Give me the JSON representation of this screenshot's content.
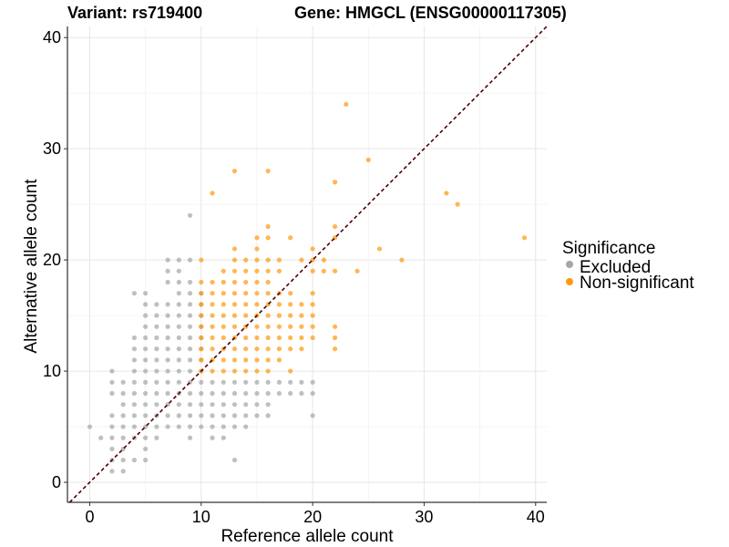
{
  "header": {
    "variant_label": "Variant: rs719400",
    "gene_label": "Gene: HMGCL (ENSG00000117305)"
  },
  "chart_data": {
    "type": "scatter",
    "xlabel": "Reference allele count",
    "ylabel": "Alternative allele count",
    "xlim": [
      -2,
      41
    ],
    "ylim": [
      -1.8,
      41
    ],
    "x_ticks": [
      0,
      10,
      20,
      30,
      40
    ],
    "y_ticks": [
      0,
      10,
      20,
      30,
      40
    ],
    "grid": true,
    "diagonal_line": {
      "slope": 1,
      "intercept": 0,
      "style": "dashed",
      "color": "#4a0000"
    },
    "legend": {
      "title": "Significance",
      "placement": "right",
      "entries": [
        {
          "name": "Excluded",
          "color": "#a6a6a6"
        },
        {
          "name": "Non-significant",
          "color": "#ff9a10"
        }
      ]
    },
    "series": [
      {
        "name": "Excluded",
        "color": "#a6a6a6",
        "points": [
          [
            0,
            5
          ],
          [
            1,
            4
          ],
          [
            2,
            1
          ],
          [
            2,
            2
          ],
          [
            2,
            3
          ],
          [
            2,
            4
          ],
          [
            2,
            5
          ],
          [
            2,
            6
          ],
          [
            2,
            8
          ],
          [
            2,
            9
          ],
          [
            2,
            10
          ],
          [
            3,
            1
          ],
          [
            3,
            2
          ],
          [
            3,
            3
          ],
          [
            3,
            4
          ],
          [
            3,
            5
          ],
          [
            3,
            6
          ],
          [
            3,
            7
          ],
          [
            3,
            8
          ],
          [
            3,
            9
          ],
          [
            4,
            2
          ],
          [
            4,
            4
          ],
          [
            4,
            5
          ],
          [
            4,
            6
          ],
          [
            4,
            7
          ],
          [
            4,
            8
          ],
          [
            4,
            9
          ],
          [
            4,
            10
          ],
          [
            4,
            11
          ],
          [
            4,
            12
          ],
          [
            4,
            13
          ],
          [
            4,
            17
          ],
          [
            5,
            2
          ],
          [
            5,
            3
          ],
          [
            5,
            4
          ],
          [
            5,
            5
          ],
          [
            5,
            6
          ],
          [
            5,
            7
          ],
          [
            5,
            8
          ],
          [
            5,
            9
          ],
          [
            5,
            10
          ],
          [
            5,
            11
          ],
          [
            5,
            12
          ],
          [
            5,
            13
          ],
          [
            5,
            14
          ],
          [
            5,
            15
          ],
          [
            5,
            16
          ],
          [
            5,
            17
          ],
          [
            6,
            4
          ],
          [
            6,
            5
          ],
          [
            6,
            6
          ],
          [
            6,
            7
          ],
          [
            6,
            8
          ],
          [
            6,
            9
          ],
          [
            6,
            10
          ],
          [
            6,
            11
          ],
          [
            6,
            12
          ],
          [
            6,
            13
          ],
          [
            6,
            14
          ],
          [
            6,
            15
          ],
          [
            6,
            16
          ],
          [
            7,
            5
          ],
          [
            7,
            6
          ],
          [
            7,
            7
          ],
          [
            7,
            8
          ],
          [
            7,
            9
          ],
          [
            7,
            10
          ],
          [
            7,
            11
          ],
          [
            7,
            12
          ],
          [
            7,
            13
          ],
          [
            7,
            14
          ],
          [
            7,
            15
          ],
          [
            7,
            16
          ],
          [
            7,
            18
          ],
          [
            7,
            19
          ],
          [
            7,
            20
          ],
          [
            8,
            5
          ],
          [
            8,
            6
          ],
          [
            8,
            7
          ],
          [
            8,
            8
          ],
          [
            8,
            9
          ],
          [
            8,
            10
          ],
          [
            8,
            11
          ],
          [
            8,
            12
          ],
          [
            8,
            13
          ],
          [
            8,
            14
          ],
          [
            8,
            15
          ],
          [
            8,
            16
          ],
          [
            8,
            17
          ],
          [
            8,
            18
          ],
          [
            8,
            19
          ],
          [
            8,
            20
          ],
          [
            9,
            4
          ],
          [
            9,
            5
          ],
          [
            9,
            6
          ],
          [
            9,
            7
          ],
          [
            9,
            8
          ],
          [
            9,
            9
          ],
          [
            9,
            10
          ],
          [
            9,
            11
          ],
          [
            9,
            12
          ],
          [
            9,
            13
          ],
          [
            9,
            14
          ],
          [
            9,
            15
          ],
          [
            9,
            16
          ],
          [
            9,
            17
          ],
          [
            9,
            18
          ],
          [
            9,
            20
          ],
          [
            9,
            24
          ],
          [
            10,
            5
          ],
          [
            10,
            6
          ],
          [
            10,
            7
          ],
          [
            10,
            8
          ],
          [
            10,
            9
          ],
          [
            10,
            10
          ],
          [
            10,
            11
          ],
          [
            10,
            12
          ],
          [
            10,
            13
          ],
          [
            10,
            14
          ],
          [
            10,
            15
          ],
          [
            10,
            16
          ],
          [
            10,
            17
          ],
          [
            11,
            4
          ],
          [
            11,
            5
          ],
          [
            11,
            6
          ],
          [
            11,
            7
          ],
          [
            11,
            8
          ],
          [
            11,
            9
          ],
          [
            12,
            4
          ],
          [
            12,
            5
          ],
          [
            12,
            6
          ],
          [
            12,
            7
          ],
          [
            12,
            8
          ],
          [
            12,
            9
          ],
          [
            13,
            2
          ],
          [
            13,
            5
          ],
          [
            13,
            6
          ],
          [
            13,
            7
          ],
          [
            13,
            8
          ],
          [
            13,
            9
          ],
          [
            14,
            5
          ],
          [
            14,
            6
          ],
          [
            14,
            7
          ],
          [
            14,
            8
          ],
          [
            14,
            9
          ],
          [
            15,
            6
          ],
          [
            15,
            7
          ],
          [
            15,
            8
          ],
          [
            15,
            9
          ],
          [
            16,
            6
          ],
          [
            16,
            7
          ],
          [
            16,
            8
          ],
          [
            16,
            9
          ],
          [
            17,
            8
          ],
          [
            17,
            9
          ],
          [
            18,
            8
          ],
          [
            18,
            9
          ],
          [
            19,
            8
          ],
          [
            19,
            9
          ],
          [
            20,
            6
          ],
          [
            20,
            8
          ],
          [
            20,
            9
          ]
        ]
      },
      {
        "name": "Non-significant",
        "color": "#ff9a10",
        "points": [
          [
            10,
            10
          ],
          [
            10,
            11
          ],
          [
            10,
            12
          ],
          [
            10,
            13
          ],
          [
            10,
            14
          ],
          [
            10,
            15
          ],
          [
            10,
            16
          ],
          [
            10,
            17
          ],
          [
            10,
            18
          ],
          [
            10,
            20
          ],
          [
            11,
            10
          ],
          [
            11,
            11
          ],
          [
            11,
            12
          ],
          [
            11,
            13
          ],
          [
            11,
            14
          ],
          [
            11,
            15
          ],
          [
            11,
            16
          ],
          [
            11,
            17
          ],
          [
            11,
            18
          ],
          [
            11,
            26
          ],
          [
            12,
            10
          ],
          [
            12,
            11
          ],
          [
            12,
            12
          ],
          [
            12,
            13
          ],
          [
            12,
            14
          ],
          [
            12,
            15
          ],
          [
            12,
            16
          ],
          [
            12,
            17
          ],
          [
            12,
            18
          ],
          [
            12,
            19
          ],
          [
            13,
            10
          ],
          [
            13,
            11
          ],
          [
            13,
            12
          ],
          [
            13,
            13
          ],
          [
            13,
            14
          ],
          [
            13,
            15
          ],
          [
            13,
            16
          ],
          [
            13,
            17
          ],
          [
            13,
            18
          ],
          [
            13,
            19
          ],
          [
            13,
            20
          ],
          [
            13,
            21
          ],
          [
            13,
            28
          ],
          [
            14,
            10
          ],
          [
            14,
            11
          ],
          [
            14,
            12
          ],
          [
            14,
            13
          ],
          [
            14,
            14
          ],
          [
            14,
            15
          ],
          [
            14,
            16
          ],
          [
            14,
            17
          ],
          [
            14,
            18
          ],
          [
            14,
            19
          ],
          [
            14,
            20
          ],
          [
            15,
            10
          ],
          [
            15,
            11
          ],
          [
            15,
            12
          ],
          [
            15,
            13
          ],
          [
            15,
            14
          ],
          [
            15,
            15
          ],
          [
            15,
            16
          ],
          [
            15,
            17
          ],
          [
            15,
            18
          ],
          [
            15,
            19
          ],
          [
            15,
            20
          ],
          [
            15,
            21
          ],
          [
            15,
            22
          ],
          [
            16,
            10
          ],
          [
            16,
            11
          ],
          [
            16,
            12
          ],
          [
            16,
            13
          ],
          [
            16,
            14
          ],
          [
            16,
            15
          ],
          [
            16,
            16
          ],
          [
            16,
            17
          ],
          [
            16,
            18
          ],
          [
            16,
            19
          ],
          [
            16,
            20
          ],
          [
            16,
            22
          ],
          [
            16,
            23
          ],
          [
            16,
            28
          ],
          [
            17,
            11
          ],
          [
            17,
            12
          ],
          [
            17,
            13
          ],
          [
            17,
            14
          ],
          [
            17,
            15
          ],
          [
            17,
            16
          ],
          [
            17,
            17
          ],
          [
            17,
            19
          ],
          [
            17,
            20
          ],
          [
            18,
            10
          ],
          [
            18,
            12
          ],
          [
            18,
            13
          ],
          [
            18,
            14
          ],
          [
            18,
            15
          ],
          [
            18,
            16
          ],
          [
            18,
            17
          ],
          [
            18,
            22
          ],
          [
            19,
            12
          ],
          [
            19,
            13
          ],
          [
            19,
            14
          ],
          [
            19,
            15
          ],
          [
            19,
            16
          ],
          [
            19,
            20
          ],
          [
            20,
            13
          ],
          [
            20,
            14
          ],
          [
            20,
            15
          ],
          [
            20,
            16
          ],
          [
            20,
            17
          ],
          [
            20,
            19
          ],
          [
            20,
            20
          ],
          [
            20,
            21
          ],
          [
            21,
            19
          ],
          [
            21,
            20
          ],
          [
            22,
            12
          ],
          [
            22,
            13
          ],
          [
            22,
            14
          ],
          [
            22,
            19
          ],
          [
            22,
            22
          ],
          [
            22,
            23
          ],
          [
            22,
            27
          ],
          [
            23,
            34
          ],
          [
            24,
            19
          ],
          [
            25,
            29
          ],
          [
            26,
            21
          ],
          [
            28,
            20
          ],
          [
            32,
            26
          ],
          [
            33,
            25
          ],
          [
            39,
            22
          ]
        ]
      }
    ]
  }
}
